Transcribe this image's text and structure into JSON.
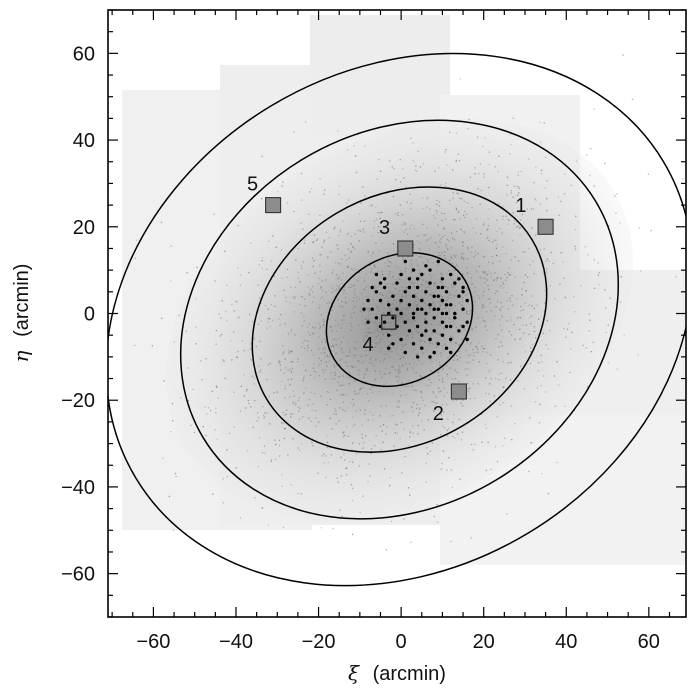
{
  "chart_data": {
    "type": "scatter",
    "xlabel_symbol": "ξ",
    "xlabel_unit": "(arcmin)",
    "ylabel_symbol": "η",
    "ylabel_unit": "(arcmin)",
    "xlim": [
      -71,
      69
    ],
    "ylim": [
      -70,
      70
    ],
    "xticks": [
      -60,
      -40,
      -20,
      0,
      20,
      40,
      60
    ],
    "yticks": [
      -60,
      -40,
      -20,
      0,
      20,
      40,
      60
    ],
    "xtick_labels": [
      "−60",
      "−40",
      "−20",
      "0",
      "20",
      "40",
      "60"
    ],
    "ytick_labels": [
      "60",
      "40",
      "20",
      "0",
      "−20",
      "−40",
      "−60"
    ],
    "grid": false,
    "ellipses": [
      {
        "center": [
          -0.4,
          -1.4
        ],
        "semi_major": 18.5,
        "semi_minor": 14.5,
        "position_angle_deg": 31
      },
      {
        "center": [
          -0.4,
          -1.4
        ],
        "semi_major": 37.5,
        "semi_minor": 28.5,
        "position_angle_deg": 31
      },
      {
        "center": [
          -0.4,
          -1.4
        ],
        "semi_major": 55.5,
        "semi_minor": 43.2,
        "position_angle_deg": 31
      },
      {
        "center": [
          -0.4,
          -1.4
        ],
        "semi_major": 74.5,
        "semi_minor": 57.5,
        "position_angle_deg": 31
      }
    ],
    "fields": [
      {
        "label": "1",
        "x": 35,
        "y": 20,
        "label_x": 29,
        "label_y": 25,
        "style": "filled"
      },
      {
        "label": "2",
        "x": 14,
        "y": -18,
        "label_x": 9,
        "label_y": -23,
        "style": "filled"
      },
      {
        "label": "3",
        "x": 1,
        "y": 15,
        "label_x": -4,
        "label_y": 20,
        "style": "filled"
      },
      {
        "label": "4",
        "x": -3,
        "y": -2,
        "label_x": -8,
        "label_y": -7,
        "style": "open"
      },
      {
        "label": "5",
        "x": -31,
        "y": 25,
        "label_x": -36,
        "label_y": 30,
        "style": "filled"
      }
    ],
    "stars": [
      [
        -6,
        5
      ],
      [
        -5,
        3
      ],
      [
        -4,
        6
      ],
      [
        -3,
        2
      ],
      [
        -2,
        4
      ],
      [
        -1,
        7
      ],
      [
        0,
        3
      ],
      [
        1,
        5
      ],
      [
        2,
        2
      ],
      [
        2,
        8
      ],
      [
        3,
        4
      ],
      [
        4,
        1
      ],
      [
        4,
        6
      ],
      [
        5,
        9
      ],
      [
        5,
        3
      ],
      [
        6,
        0
      ],
      [
        6,
        5
      ],
      [
        7,
        2
      ],
      [
        7,
        7
      ],
      [
        8,
        -1
      ],
      [
        8,
        4
      ],
      [
        9,
        1
      ],
      [
        9,
        6
      ],
      [
        10,
        -2
      ],
      [
        10,
        3
      ],
      [
        11,
        0
      ],
      [
        11,
        5
      ],
      [
        12,
        -3
      ],
      [
        12,
        2
      ],
      [
        13,
        7
      ],
      [
        13,
        -1
      ],
      [
        14,
        4
      ],
      [
        14,
        -4
      ],
      [
        15,
        1
      ],
      [
        15,
        6
      ],
      [
        16,
        -2
      ],
      [
        16,
        3
      ],
      [
        -7,
        1
      ],
      [
        -6,
        -1
      ],
      [
        -5,
        -3
      ],
      [
        -4,
        -2
      ],
      [
        -3,
        -5
      ],
      [
        -2,
        -1
      ],
      [
        -1,
        -3
      ],
      [
        0,
        -6
      ],
      [
        0,
        0
      ],
      [
        1,
        -2
      ],
      [
        2,
        -4
      ],
      [
        3,
        -1
      ],
      [
        3,
        -7
      ],
      [
        4,
        -3
      ],
      [
        5,
        -5
      ],
      [
        5,
        -8
      ],
      [
        6,
        -2
      ],
      [
        7,
        -6
      ],
      [
        8,
        -4
      ],
      [
        9,
        -7
      ],
      [
        10,
        -5
      ],
      [
        11,
        -8
      ],
      [
        12,
        -6
      ],
      [
        -8,
        3
      ],
      [
        -8,
        -2
      ],
      [
        -9,
        1
      ],
      [
        -7,
        6
      ],
      [
        0,
        9
      ],
      [
        3,
        10
      ],
      [
        7,
        10
      ],
      [
        10,
        8
      ],
      [
        12,
        9
      ],
      [
        14,
        8
      ],
      [
        -2,
        -7
      ],
      [
        1,
        -9
      ],
      [
        4,
        -10
      ],
      [
        8,
        -9
      ],
      [
        6,
        11
      ],
      [
        -4,
        8
      ],
      [
        9,
        4
      ],
      [
        11,
        -3
      ],
      [
        13,
        0
      ],
      [
        15,
        -3
      ],
      [
        2,
        6
      ],
      [
        -1,
        1
      ],
      [
        6,
        -4
      ],
      [
        10,
        6
      ],
      [
        4,
        8
      ],
      [
        -5,
        7
      ],
      [
        12,
        -9
      ],
      [
        15,
        5
      ],
      [
        -3,
        -8
      ],
      [
        7,
        -10
      ],
      [
        1,
        12
      ],
      [
        9,
        12
      ],
      [
        -6,
        9
      ],
      [
        16,
        -6
      ],
      [
        3,
        0
      ],
      [
        5,
        1
      ],
      [
        8,
        1
      ],
      [
        10,
        0
      ],
      [
        11,
        2
      ],
      [
        -3,
        0
      ]
    ]
  }
}
